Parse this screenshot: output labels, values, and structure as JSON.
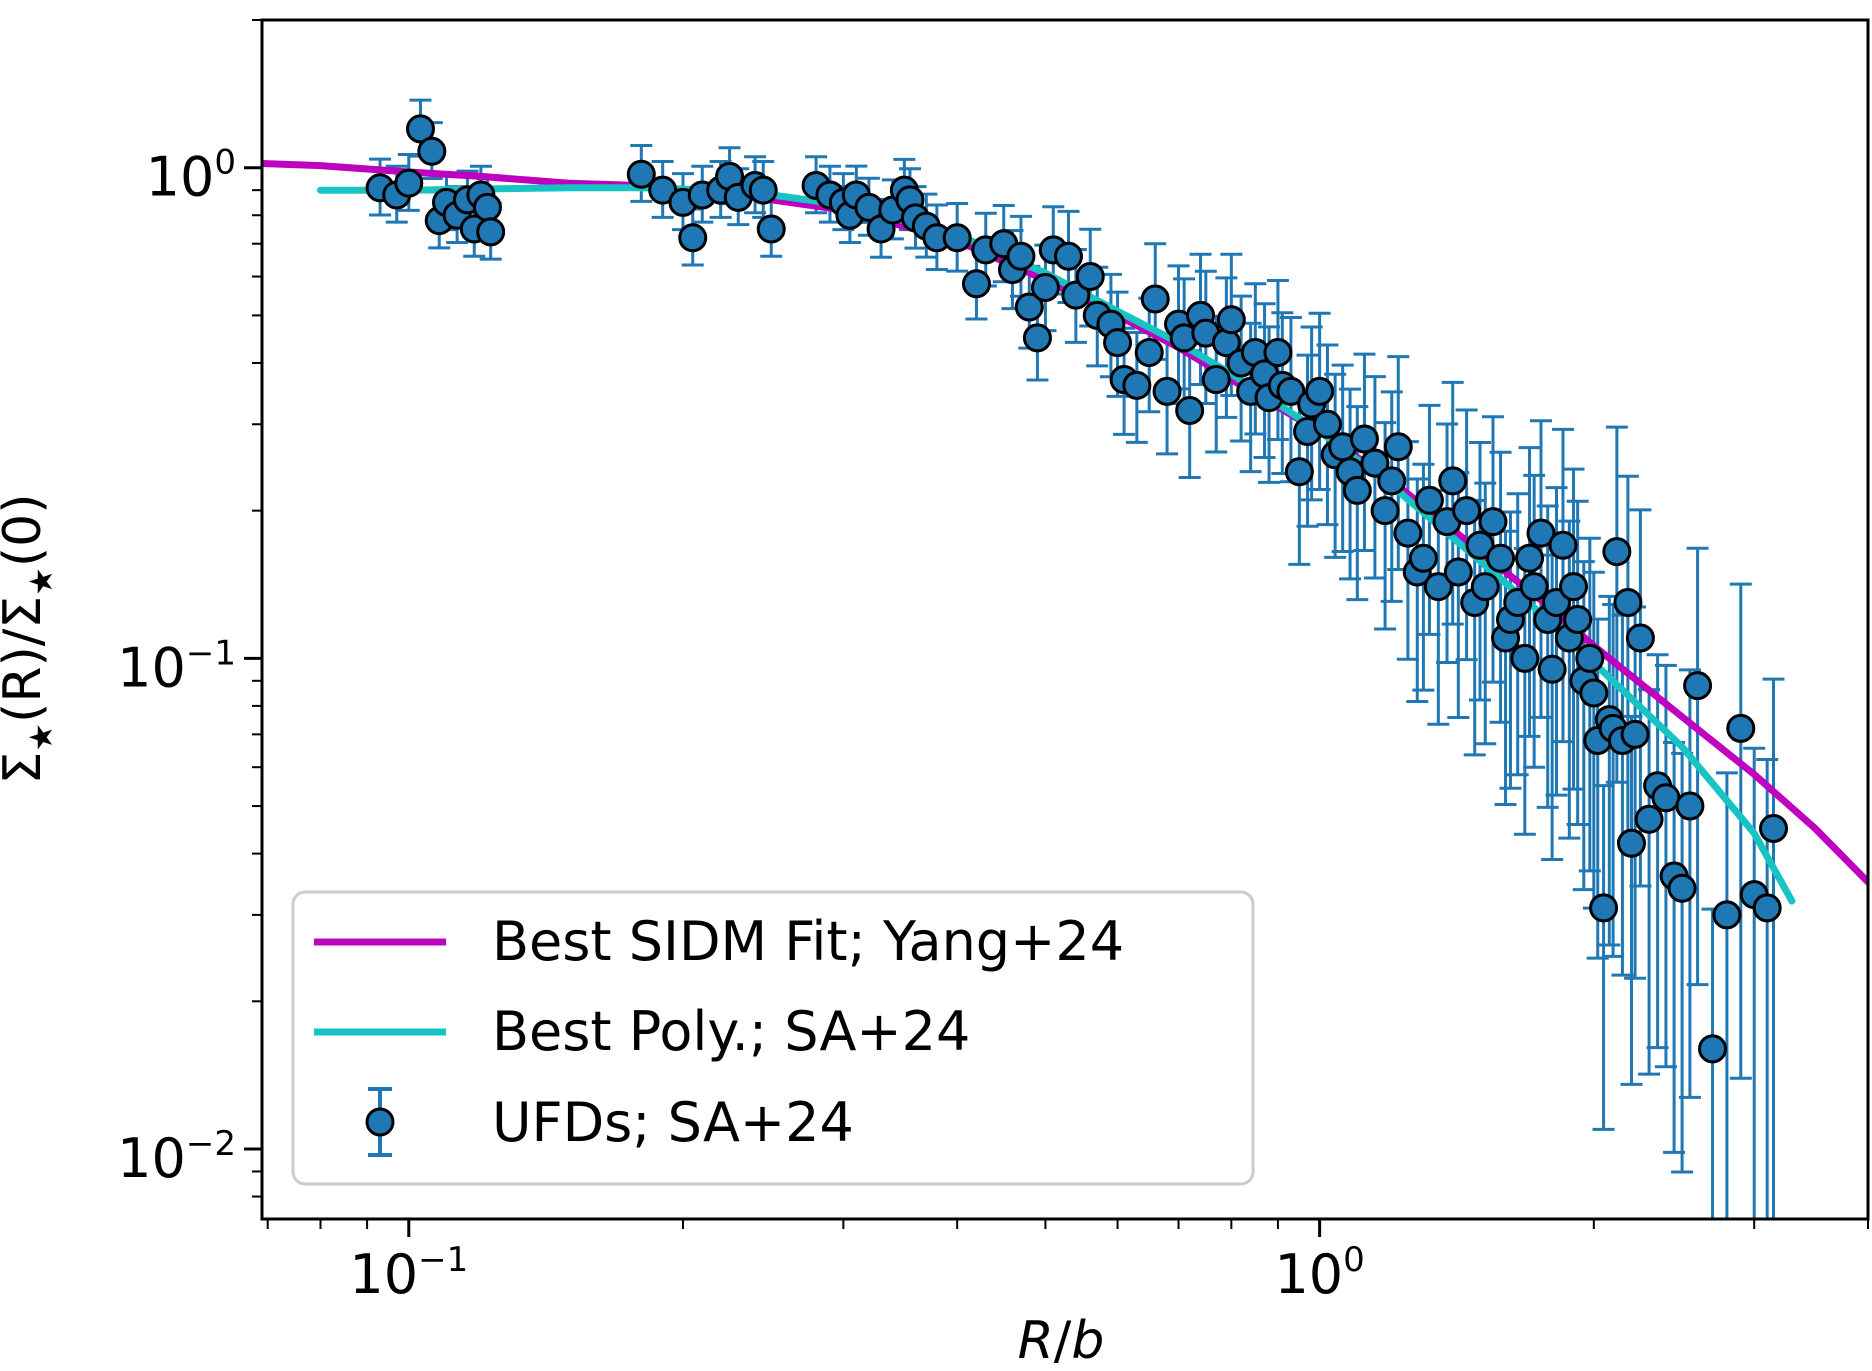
{
  "colors": {
    "sidm": "#bf00bf",
    "poly": "#17c3c3",
    "ufd": "#1f77b4",
    "marker_edge": "#000000"
  },
  "chart_data": {
    "type": "scatter",
    "xscale": "log",
    "yscale": "log",
    "xlim": [
      0.069,
      4.0
    ],
    "ylim": [
      0.0072,
      2.0
    ],
    "xlabel_parts": {
      "main": "R",
      "slash": "/",
      "sub": "b"
    },
    "ylabel_parts": {
      "sigma": "Σ",
      "star": "★",
      "r": "(R)/",
      "sigma2": "Σ",
      "star2": "★",
      "zero": "(0)"
    },
    "x_ticks": [
      {
        "value": 0.1,
        "base": "10",
        "exp": "−1"
      },
      {
        "value": 1.0,
        "base": "10",
        "exp": "0"
      }
    ],
    "y_ticks": [
      {
        "value": 1.0,
        "base": "10",
        "exp": "0"
      },
      {
        "value": 0.1,
        "base": "10",
        "exp": "−1"
      },
      {
        "value": 0.01,
        "base": "10",
        "exp": "−2"
      }
    ],
    "legend": [
      {
        "label": "Best SIDM Fit; Yang+24",
        "kind": "line",
        "series": "sidm"
      },
      {
        "label": "Best Poly.; SA+24",
        "kind": "line",
        "series": "poly"
      },
      {
        "label": "UFDs; SA+24",
        "kind": "marker",
        "series": "ufd"
      }
    ],
    "series": [
      {
        "name": "Best SIDM Fit; Yang+24",
        "kind": "line",
        "x": [
          0.069,
          0.08,
          0.1,
          0.12,
          0.15,
          0.18,
          0.2,
          0.25,
          0.3,
          0.35,
          0.4,
          0.5,
          0.6,
          0.7,
          0.8,
          1.0,
          1.2,
          1.5,
          1.8,
          2.0,
          2.5,
          3.0,
          3.5,
          4.0
        ],
        "y": [
          1.02,
          1.01,
          0.98,
          0.96,
          0.93,
          0.92,
          0.9,
          0.86,
          0.82,
          0.76,
          0.71,
          0.59,
          0.5,
          0.43,
          0.37,
          0.29,
          0.23,
          0.165,
          0.126,
          0.106,
          0.076,
          0.058,
          0.045,
          0.035
        ]
      },
      {
        "name": "Best Poly.; SA+24",
        "kind": "line",
        "x": [
          0.08,
          0.1,
          0.12,
          0.15,
          0.18,
          0.2,
          0.25,
          0.3,
          0.35,
          0.4,
          0.5,
          0.6,
          0.7,
          0.8,
          1.0,
          1.2,
          1.5,
          1.8,
          2.0,
          2.5,
          3.0,
          3.3
        ],
        "y": [
          0.9,
          0.9,
          0.905,
          0.91,
          0.91,
          0.905,
          0.88,
          0.84,
          0.78,
          0.73,
          0.61,
          0.51,
          0.44,
          0.38,
          0.29,
          0.225,
          0.158,
          0.118,
          0.098,
          0.066,
          0.044,
          0.032
        ]
      },
      {
        "name": "UFDs; SA+24",
        "kind": "errorbar",
        "x": [
          0.093,
          0.097,
          0.1,
          0.103,
          0.106,
          0.108,
          0.11,
          0.113,
          0.116,
          0.118,
          0.12,
          0.122,
          0.123,
          0.18,
          0.19,
          0.2,
          0.205,
          0.21,
          0.22,
          0.225,
          0.23,
          0.24,
          0.245,
          0.25,
          0.28,
          0.29,
          0.3,
          0.305,
          0.31,
          0.32,
          0.33,
          0.34,
          0.35,
          0.355,
          0.36,
          0.37,
          0.38,
          0.4,
          0.42,
          0.43,
          0.45,
          0.46,
          0.47,
          0.48,
          0.49,
          0.5,
          0.51,
          0.53,
          0.54,
          0.56,
          0.57,
          0.59,
          0.6,
          0.61,
          0.63,
          0.65,
          0.66,
          0.68,
          0.7,
          0.71,
          0.72,
          0.74,
          0.75,
          0.77,
          0.79,
          0.8,
          0.82,
          0.84,
          0.85,
          0.87,
          0.88,
          0.9,
          0.91,
          0.93,
          0.95,
          0.97,
          0.98,
          1.0,
          1.02,
          1.04,
          1.06,
          1.08,
          1.1,
          1.12,
          1.15,
          1.18,
          1.2,
          1.22,
          1.25,
          1.28,
          1.3,
          1.32,
          1.35,
          1.38,
          1.4,
          1.42,
          1.45,
          1.48,
          1.5,
          1.52,
          1.55,
          1.58,
          1.6,
          1.62,
          1.65,
          1.68,
          1.7,
          1.72,
          1.75,
          1.78,
          1.8,
          1.82,
          1.85,
          1.88,
          1.9,
          1.92,
          1.95,
          1.98,
          2.0,
          2.02,
          2.05,
          2.08,
          2.1,
          2.12,
          2.15,
          2.18,
          2.2,
          2.22,
          2.25,
          2.3,
          2.35,
          2.4,
          2.45,
          2.5,
          2.55,
          2.6,
          2.7,
          2.8,
          2.9,
          3.0,
          3.1,
          3.15
        ],
        "y": [
          0.91,
          0.88,
          0.93,
          1.2,
          1.08,
          0.78,
          0.85,
          0.8,
          0.86,
          0.75,
          0.88,
          0.83,
          0.74,
          0.97,
          0.9,
          0.85,
          0.72,
          0.88,
          0.9,
          0.96,
          0.87,
          0.92,
          0.9,
          0.75,
          0.92,
          0.88,
          0.85,
          0.8,
          0.88,
          0.83,
          0.75,
          0.82,
          0.9,
          0.86,
          0.79,
          0.76,
          0.72,
          0.72,
          0.58,
          0.68,
          0.7,
          0.62,
          0.66,
          0.52,
          0.45,
          0.57,
          0.68,
          0.66,
          0.55,
          0.6,
          0.5,
          0.48,
          0.44,
          0.37,
          0.36,
          0.42,
          0.54,
          0.35,
          0.48,
          0.45,
          0.32,
          0.5,
          0.46,
          0.37,
          0.44,
          0.49,
          0.4,
          0.35,
          0.42,
          0.38,
          0.34,
          0.42,
          0.36,
          0.35,
          0.24,
          0.29,
          0.33,
          0.35,
          0.3,
          0.26,
          0.27,
          0.24,
          0.22,
          0.28,
          0.25,
          0.2,
          0.23,
          0.27,
          0.18,
          0.15,
          0.16,
          0.21,
          0.14,
          0.19,
          0.23,
          0.15,
          0.2,
          0.13,
          0.17,
          0.14,
          0.19,
          0.16,
          0.11,
          0.12,
          0.13,
          0.1,
          0.16,
          0.14,
          0.18,
          0.12,
          0.095,
          0.13,
          0.17,
          0.11,
          0.14,
          0.12,
          0.09,
          0.1,
          0.085,
          0.068,
          0.031,
          0.075,
          0.072,
          0.165,
          0.068,
          0.13,
          0.042,
          0.07,
          0.11,
          0.047,
          0.055,
          0.052,
          0.036,
          0.034,
          0.05,
          0.088,
          0.016,
          0.03,
          0.072,
          0.033,
          0.031,
          0.045
        ]
      }
    ]
  }
}
